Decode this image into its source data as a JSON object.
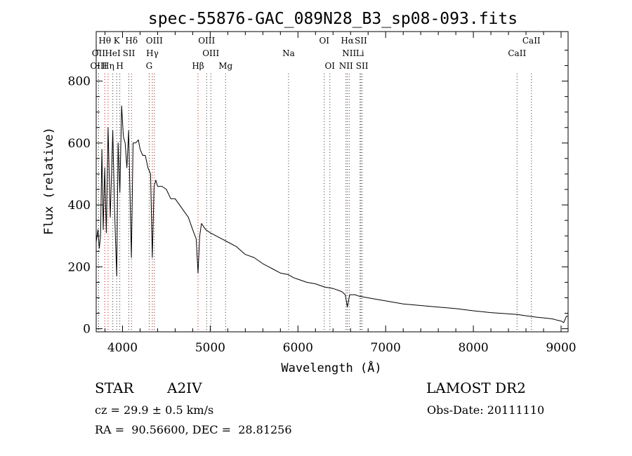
{
  "chart_data": {
    "type": "line",
    "title": "spec-55876-GAC_089N28_B3_sp08-093.fits",
    "xlabel": "Wavelength (Å)",
    "ylabel": "Flux (relative)",
    "xlim": [
      3700,
      9080
    ],
    "ylim": [
      -10,
      960
    ],
    "xticks": [
      4000,
      5000,
      6000,
      7000,
      8000,
      9000
    ],
    "yticks": [
      0,
      200,
      400,
      600,
      800
    ],
    "grid": false,
    "series": [
      {
        "x": [
          3700,
          3720,
          3735,
          3750,
          3765,
          3780,
          3797,
          3815,
          3835,
          3860,
          3889,
          3910,
          3934,
          3950,
          3970,
          3990,
          4010,
          4030,
          4050,
          4070,
          4101,
          4120,
          4150,
          4180,
          4200,
          4230,
          4260,
          4290,
          4320,
          4340,
          4360,
          4380,
          4400,
          4450,
          4500,
          4550,
          4600,
          4650,
          4700,
          4750,
          4800,
          4840,
          4861,
          4880,
          4900,
          4950,
          5000,
          5100,
          5200,
          5300,
          5400,
          5500,
          5600,
          5700,
          5800,
          5890,
          5950,
          6000,
          6100,
          6200,
          6300,
          6400,
          6500,
          6540,
          6563,
          6590,
          6650,
          6700,
          6800,
          6900,
          7000,
          7200,
          7400,
          7600,
          7800,
          8000,
          8200,
          8400,
          8500,
          8600,
          8700,
          8800,
          8900,
          8950,
          9000,
          9030,
          9060,
          9080
        ],
        "y": [
          280,
          320,
          260,
          300,
          580,
          320,
          520,
          310,
          650,
          360,
          640,
          380,
          170,
          600,
          440,
          720,
          620,
          600,
          520,
          640,
          230,
          600,
          600,
          610,
          580,
          560,
          560,
          520,
          500,
          230,
          460,
          480,
          460,
          460,
          450,
          420,
          420,
          400,
          380,
          360,
          320,
          290,
          180,
          300,
          340,
          320,
          310,
          295,
          280,
          265,
          240,
          230,
          210,
          195,
          180,
          175,
          165,
          160,
          150,
          145,
          135,
          130,
          120,
          110,
          70,
          110,
          110,
          105,
          100,
          95,
          90,
          80,
          75,
          70,
          65,
          58,
          52,
          48,
          46,
          42,
          38,
          35,
          32,
          28,
          25,
          20,
          40,
          40
        ]
      }
    ],
    "lines": [
      {
        "name": "Hθ",
        "x": 3798,
        "row": 1,
        "color": "#cc0000"
      },
      {
        "name": "K",
        "x": 3934,
        "row": 1,
        "color": "#333333"
      },
      {
        "name": "Hδ",
        "x": 4102,
        "row": 1,
        "color": "#cc0000"
      },
      {
        "name": "OIII",
        "x": 4363,
        "row": 1,
        "color": "#333333"
      },
      {
        "name": "OIII",
        "x": 4959,
        "row": 1,
        "color": "#333333"
      },
      {
        "name": "OI",
        "x": 6300,
        "row": 1,
        "color": "#333333"
      },
      {
        "name": "Hα",
        "x": 6563,
        "row": 1,
        "color": "#cc0000"
      },
      {
        "name": "SII",
        "x": 6717,
        "row": 1,
        "color": "#333333"
      },
      {
        "name": "CaII",
        "x": 8662,
        "row": 1,
        "color": "#333333"
      },
      {
        "name": "OII",
        "x": 3727,
        "row": 2,
        "color": "#333333"
      },
      {
        "name": "HeI",
        "x": 3889,
        "row": 2,
        "color": "#333333"
      },
      {
        "name": "SII",
        "x": 4072,
        "row": 2,
        "color": "#333333"
      },
      {
        "name": "Hγ",
        "x": 4340,
        "row": 2,
        "color": "#cc0000"
      },
      {
        "name": "OIII",
        "x": 5007,
        "row": 2,
        "color": "#333333"
      },
      {
        "name": "Na",
        "x": 5893,
        "row": 2,
        "color": "#333333"
      },
      {
        "name": "NII",
        "x": 6584,
        "row": 2,
        "color": "#333333"
      },
      {
        "name": "Li",
        "x": 6708,
        "row": 2,
        "color": "#333333"
      },
      {
        "name": "CaII",
        "x": 8498,
        "row": 2,
        "color": "#333333"
      },
      {
        "name": "OIII",
        "x": 3727,
        "row": 3,
        "color": "#333333"
      },
      {
        "name": "Hη",
        "x": 3835,
        "row": 3,
        "color": "#cc0000"
      },
      {
        "name": "H",
        "x": 3969,
        "row": 3,
        "color": "#333333"
      },
      {
        "name": "G",
        "x": 4304,
        "row": 3,
        "color": "#333333"
      },
      {
        "name": "Hβ",
        "x": 4861,
        "row": 3,
        "color": "#cc0000"
      },
      {
        "name": "Mg",
        "x": 5175,
        "row": 3,
        "color": "#333333"
      },
      {
        "name": "OI",
        "x": 6364,
        "row": 3,
        "color": "#333333"
      },
      {
        "name": "NII",
        "x": 6548,
        "row": 3,
        "color": "#333333"
      },
      {
        "name": "SII",
        "x": 6731,
        "row": 3,
        "color": "#333333"
      }
    ]
  },
  "info": {
    "object_class": "STAR",
    "subclass": "A2IV",
    "redshift": "cz = 29.9 ± 0.5 km/s",
    "coords": "RA =  90.56600, DEC =  28.81256",
    "survey": "LAMOST DR2",
    "obs_date": "Obs-Date: 20111110"
  }
}
